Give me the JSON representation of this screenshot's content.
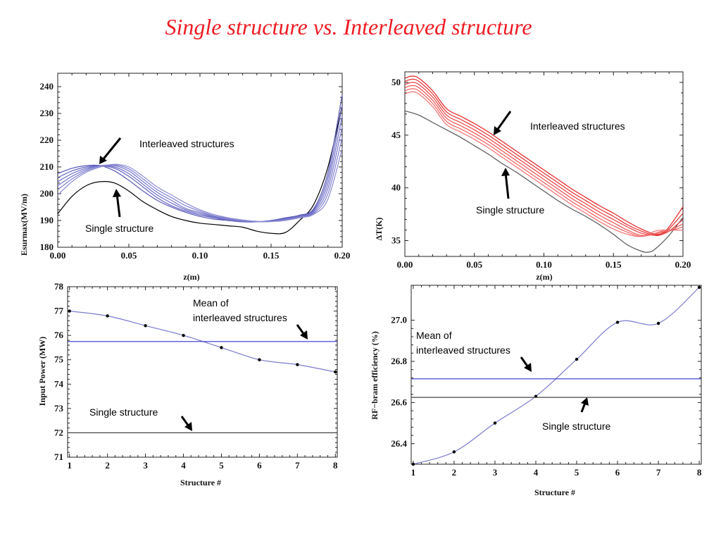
{
  "title": "Single structure vs. Interleaved structure",
  "chart_data": [
    {
      "type": "line",
      "xlabel": "z(m)",
      "ylabel": "Esurmax(MV/m)",
      "xlim": [
        0,
        0.2
      ],
      "ylim": [
        180,
        245
      ],
      "xticks": [
        "0.00",
        "0.05",
        "0.10",
        "0.15",
        "0.20"
      ],
      "yticks": [
        "180",
        "190",
        "200",
        "210",
        "220",
        "230",
        "240"
      ],
      "annotations": [
        "Interleaved structures",
        "Single structure"
      ],
      "series": [
        {
          "color": "#000000",
          "x": [
            0,
            0.01,
            0.02,
            0.03,
            0.04,
            0.05,
            0.06,
            0.07,
            0.08,
            0.09,
            0.1,
            0.11,
            0.12,
            0.13,
            0.14,
            0.15,
            0.16,
            0.17,
            0.18,
            0.19,
            0.2
          ],
          "values": [
            192.5,
            199,
            203,
            204.5,
            204,
            201,
            197,
            194,
            191.5,
            190,
            189,
            188.5,
            188,
            187.5,
            186,
            185.2,
            185.5,
            190,
            196,
            210,
            233
          ]
        },
        {
          "color": "#5a5ab8",
          "x": [
            0,
            0.01,
            0.02,
            0.03,
            0.04,
            0.05,
            0.06,
            0.07,
            0.08,
            0.09,
            0.1,
            0.11,
            0.12,
            0.13,
            0.14,
            0.15,
            0.16,
            0.17,
            0.18,
            0.19,
            0.2
          ],
          "values": [
            207.5,
            209.5,
            210.5,
            210.5,
            208.5,
            205,
            201,
            197.5,
            195,
            193,
            191.5,
            190.5,
            190,
            189.5,
            189.5,
            190,
            191,
            192,
            194.5,
            208,
            237
          ]
        },
        {
          "color": "#6464c0",
          "x": [
            0,
            0.01,
            0.02,
            0.03,
            0.04,
            0.05,
            0.06,
            0.07,
            0.08,
            0.09,
            0.1,
            0.11,
            0.12,
            0.13,
            0.14,
            0.15,
            0.16,
            0.17,
            0.18,
            0.19,
            0.2
          ],
          "values": [
            206,
            208.5,
            210,
            210.5,
            209.5,
            206.5,
            202.5,
            198.5,
            195.5,
            193.5,
            192,
            191,
            190,
            189.5,
            189.5,
            190,
            190.8,
            191.8,
            194,
            206,
            233
          ]
        },
        {
          "color": "#6e6ec8",
          "x": [
            0,
            0.01,
            0.02,
            0.03,
            0.04,
            0.05,
            0.06,
            0.07,
            0.08,
            0.09,
            0.1,
            0.11,
            0.12,
            0.13,
            0.14,
            0.15,
            0.16,
            0.17,
            0.18,
            0.19,
            0.2
          ],
          "values": [
            204.5,
            207.5,
            209.5,
            210.5,
            210,
            207.5,
            203.5,
            199.5,
            196.5,
            194,
            192.5,
            191.2,
            190.2,
            189.6,
            189.5,
            189.8,
            190.6,
            191.6,
            193.5,
            204,
            229
          ]
        },
        {
          "color": "#7878cc",
          "x": [
            0,
            0.01,
            0.02,
            0.03,
            0.04,
            0.05,
            0.06,
            0.07,
            0.08,
            0.09,
            0.1,
            0.11,
            0.12,
            0.13,
            0.14,
            0.15,
            0.16,
            0.17,
            0.18,
            0.19,
            0.2
          ],
          "values": [
            203,
            206.5,
            209,
            210.5,
            210.5,
            208.5,
            204.5,
            200.5,
            197.5,
            194.5,
            193,
            191.5,
            190.5,
            189.8,
            189.5,
            189.7,
            190.4,
            191.4,
            193,
            202,
            225
          ]
        },
        {
          "color": "#8282d0",
          "x": [
            0,
            0.01,
            0.02,
            0.03,
            0.04,
            0.05,
            0.06,
            0.07,
            0.08,
            0.09,
            0.1,
            0.11,
            0.12,
            0.13,
            0.14,
            0.15,
            0.16,
            0.17,
            0.18,
            0.19,
            0.2
          ],
          "values": [
            201.5,
            205.5,
            208.5,
            210.3,
            210.8,
            209.3,
            205.5,
            201.5,
            198.5,
            195.5,
            193.5,
            191.8,
            190.8,
            190,
            189.6,
            189.6,
            190.2,
            191.2,
            192.6,
            200,
            221
          ]
        },
        {
          "color": "#8c8cd4",
          "x": [
            0,
            0.01,
            0.02,
            0.03,
            0.04,
            0.05,
            0.06,
            0.07,
            0.08,
            0.09,
            0.1,
            0.11,
            0.12,
            0.13,
            0.14,
            0.15,
            0.16,
            0.17,
            0.18,
            0.19,
            0.2
          ],
          "values": [
            199.5,
            204.5,
            208,
            210,
            211,
            210,
            206.5,
            202.5,
            199.5,
            196.5,
            194,
            192.2,
            191,
            190.2,
            189.7,
            189.6,
            190,
            191,
            192.3,
            198,
            217
          ]
        }
      ]
    },
    {
      "type": "line",
      "xlabel": "z(m)",
      "ylabel": "ΔT(K)",
      "xlim": [
        0,
        0.2
      ],
      "ylim": [
        33.5,
        51
      ],
      "xticks": [
        "0.00",
        "0.05",
        "0.10",
        "0.15",
        "0.20"
      ],
      "yticks": [
        "35",
        "40",
        "45",
        "50"
      ],
      "annotations": [
        "Interleaved structures",
        "Single structure"
      ],
      "series": [
        {
          "color": "#555555",
          "x": [
            0,
            0.01,
            0.02,
            0.03,
            0.04,
            0.05,
            0.06,
            0.07,
            0.08,
            0.09,
            0.1,
            0.11,
            0.12,
            0.13,
            0.14,
            0.15,
            0.16,
            0.17,
            0.175,
            0.18,
            0.19,
            0.2
          ],
          "values": [
            47.3,
            46.9,
            46.2,
            45.5,
            44.8,
            44.0,
            43.2,
            42.3,
            41.5,
            40.6,
            39.7,
            38.8,
            38.0,
            37.3,
            36.5,
            35.6,
            34.6,
            34.0,
            33.9,
            34.2,
            35.5,
            37.2
          ]
        },
        {
          "color": "#e02020",
          "x": [
            0,
            0.005,
            0.01,
            0.02,
            0.03,
            0.04,
            0.05,
            0.06,
            0.07,
            0.08,
            0.09,
            0.1,
            0.11,
            0.12,
            0.13,
            0.14,
            0.15,
            0.16,
            0.17,
            0.18,
            0.185,
            0.19,
            0.2
          ],
          "values": [
            50.4,
            50.6,
            50.4,
            49.2,
            47.5,
            46.8,
            46.1,
            45.3,
            44.4,
            43.5,
            42.6,
            41.7,
            40.8,
            39.9,
            39.1,
            38.3,
            37.6,
            36.8,
            36.1,
            35.6,
            35.7,
            36.3,
            38.2
          ]
        },
        {
          "color": "#e43030",
          "x": [
            0,
            0.005,
            0.01,
            0.02,
            0.03,
            0.04,
            0.05,
            0.06,
            0.07,
            0.08,
            0.09,
            0.1,
            0.11,
            0.12,
            0.13,
            0.14,
            0.15,
            0.16,
            0.17,
            0.18,
            0.185,
            0.19,
            0.2
          ],
          "values": [
            50.1,
            50.3,
            50.1,
            48.9,
            47.2,
            46.5,
            45.8,
            45.0,
            44.1,
            43.2,
            42.3,
            41.4,
            40.5,
            39.6,
            38.8,
            38.0,
            37.3,
            36.5,
            35.9,
            35.5,
            35.6,
            36.1,
            37.6
          ]
        },
        {
          "color": "#e84040",
          "x": [
            0,
            0.005,
            0.01,
            0.02,
            0.03,
            0.04,
            0.05,
            0.06,
            0.07,
            0.08,
            0.09,
            0.1,
            0.11,
            0.12,
            0.13,
            0.14,
            0.15,
            0.16,
            0.17,
            0.18,
            0.185,
            0.19,
            0.2
          ],
          "values": [
            49.8,
            50.0,
            49.8,
            48.6,
            46.9,
            46.2,
            45.5,
            44.7,
            43.8,
            42.9,
            42.0,
            41.1,
            40.2,
            39.3,
            38.5,
            37.7,
            37.0,
            36.3,
            35.7,
            35.5,
            35.6,
            35.9,
            37.0
          ]
        },
        {
          "color": "#ec5050",
          "x": [
            0,
            0.005,
            0.01,
            0.02,
            0.03,
            0.04,
            0.05,
            0.06,
            0.07,
            0.08,
            0.09,
            0.1,
            0.11,
            0.12,
            0.13,
            0.14,
            0.15,
            0.16,
            0.17,
            0.18,
            0.185,
            0.19,
            0.2
          ],
          "values": [
            49.5,
            49.7,
            49.5,
            48.3,
            46.6,
            45.9,
            45.2,
            44.4,
            43.5,
            42.6,
            41.7,
            40.8,
            39.9,
            39.0,
            38.2,
            37.4,
            36.7,
            36.0,
            35.5,
            35.6,
            35.8,
            35.9,
            36.6
          ]
        },
        {
          "color": "#f06060",
          "x": [
            0,
            0.005,
            0.01,
            0.02,
            0.03,
            0.04,
            0.05,
            0.06,
            0.07,
            0.08,
            0.09,
            0.1,
            0.11,
            0.12,
            0.13,
            0.14,
            0.15,
            0.16,
            0.17,
            0.18,
            0.185,
            0.19,
            0.2
          ],
          "values": [
            49.2,
            49.4,
            49.2,
            48.0,
            46.3,
            45.6,
            44.9,
            44.1,
            43.2,
            42.3,
            41.4,
            40.5,
            39.6,
            38.7,
            37.9,
            37.1,
            36.4,
            35.8,
            35.4,
            35.7,
            35.9,
            35.9,
            36.3
          ]
        },
        {
          "color": "#f47070",
          "x": [
            0,
            0.005,
            0.01,
            0.02,
            0.03,
            0.04,
            0.05,
            0.06,
            0.07,
            0.08,
            0.09,
            0.1,
            0.11,
            0.12,
            0.13,
            0.14,
            0.15,
            0.16,
            0.17,
            0.18,
            0.185,
            0.19,
            0.2
          ],
          "values": [
            48.9,
            49.1,
            48.9,
            47.7,
            46.0,
            45.3,
            44.6,
            43.8,
            42.9,
            42.0,
            41.1,
            40.2,
            39.3,
            38.4,
            37.6,
            36.8,
            36.1,
            35.6,
            35.4,
            35.9,
            36.0,
            36.0,
            36.0
          ]
        }
      ]
    },
    {
      "type": "line",
      "xlabel": "Structure #",
      "ylabel": "Input Power (MW)",
      "xlim": [
        0.95,
        8.05
      ],
      "ylim": [
        71,
        78
      ],
      "xticks": [
        "1",
        "2",
        "3",
        "4",
        "5",
        "6",
        "7",
        "8"
      ],
      "yticks": [
        "71",
        "72",
        "73",
        "74",
        "75",
        "76",
        "77",
        "78"
      ],
      "annotations": [
        "Mean of",
        "interleaved structures",
        "Single structure"
      ],
      "series": [
        {
          "color": "#7a7acc",
          "markers": true,
          "x": [
            1,
            2,
            3,
            4,
            5,
            6,
            7,
            8
          ],
          "values": [
            77.0,
            76.8,
            76.4,
            76.0,
            75.5,
            75.0,
            74.8,
            74.5
          ]
        },
        {
          "color": "#3333cc",
          "x": [
            0.95,
            8.05
          ],
          "values": [
            75.75,
            75.75
          ]
        },
        {
          "color": "#444444",
          "x": [
            0.95,
            8.05
          ],
          "values": [
            72.0,
            72.0
          ]
        }
      ]
    },
    {
      "type": "line",
      "xlabel": "Structure #",
      "ylabel": "RF−bram efficiency (%)",
      "xlim": [
        0.95,
        8.05
      ],
      "ylim": [
        26.3,
        27.17
      ],
      "xticks": [
        "1",
        "2",
        "3",
        "4",
        "5",
        "6",
        "7",
        "8"
      ],
      "yticks": [
        "26.4",
        "26.6",
        "26.8",
        "27.0"
      ],
      "annotations": [
        "Mean of",
        "interleaved structures",
        "Single structure"
      ],
      "series": [
        {
          "color": "#7a7acc",
          "markers": true,
          "x": [
            1,
            2,
            3,
            4,
            5,
            6,
            7,
            8
          ],
          "values": [
            26.3,
            26.36,
            26.5,
            26.63,
            26.81,
            26.99,
            26.985,
            27.16
          ]
        },
        {
          "color": "#3333cc",
          "x": [
            0.95,
            8.05
          ],
          "values": [
            26.715,
            26.715
          ]
        },
        {
          "color": "#444444",
          "x": [
            0.95,
            8.05
          ],
          "values": [
            26.625,
            26.625
          ]
        }
      ]
    }
  ]
}
